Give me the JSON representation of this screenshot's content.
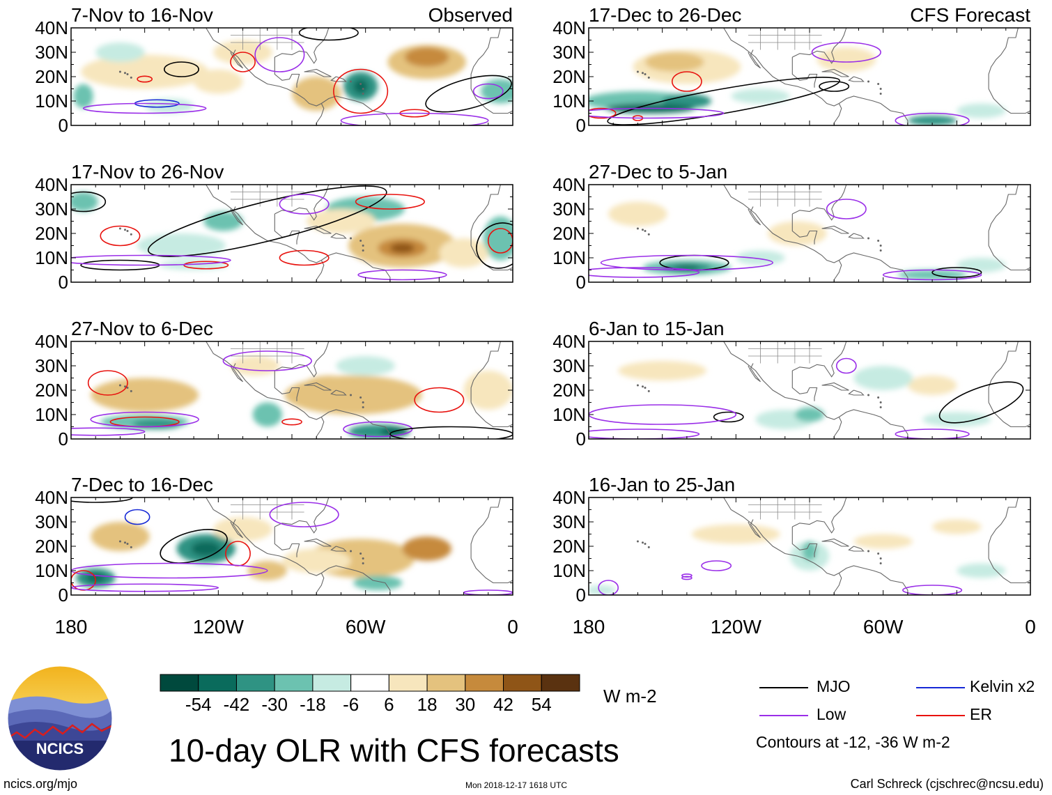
{
  "chart_data": {
    "type": "heatmap",
    "title": "10-day OLR with CFS forecasts",
    "units": "W m-2",
    "column_labels": {
      "left": "Observed",
      "right": "CFS Forecast"
    },
    "xticks": [
      "180",
      "120W",
      "60W",
      "0"
    ],
    "yticks": [
      "40N",
      "30N",
      "20N",
      "10N",
      "0"
    ],
    "xlim": [
      -180,
      0
    ],
    "ylim": [
      0,
      40
    ],
    "panels": [
      {
        "title": "7-Nov to 16-Nov",
        "kind": "Observed"
      },
      {
        "title": "17-Nov to 26-Nov",
        "kind": "Observed"
      },
      {
        "title": "27-Nov to 6-Dec",
        "kind": "Observed"
      },
      {
        "title": "7-Dec to 16-Dec",
        "kind": "Observed"
      },
      {
        "title": "17-Dec to 26-Dec",
        "kind": "CFS Forecast"
      },
      {
        "title": "27-Dec to 5-Jan",
        "kind": "CFS Forecast"
      },
      {
        "title": "6-Jan to 15-Jan",
        "kind": "CFS Forecast"
      },
      {
        "title": "16-Jan to 25-Jan",
        "kind": "CFS Forecast"
      }
    ],
    "colorbar": {
      "levels": [
        "-54",
        "-42",
        "-30",
        "-18",
        "-6",
        "6",
        "18",
        "30",
        "42",
        "54"
      ],
      "colors": [
        "#00493d",
        "#0a6b5c",
        "#2f9383",
        "#6cc2b0",
        "#c6ebe2",
        "#ffffff",
        "#f7e6bd",
        "#e4c27e",
        "#c68a3c",
        "#8f5517",
        "#5a3210"
      ]
    },
    "legend": [
      {
        "name": "MJO",
        "color": "#000000"
      },
      {
        "name": "Kelvin x2",
        "color": "#1528d6"
      },
      {
        "name": "Low",
        "color": "#9a2ee8"
      },
      {
        "name": "ER",
        "color": "#e8120e"
      }
    ],
    "contour_note": "Contours at -12, -36 W m-2"
  },
  "logo": {
    "text": "NCICS"
  },
  "footer": {
    "left": "ncics.org/mjo",
    "middle": "Mon 2018-12-17 1618 UTC",
    "right": "Carl Schreck (cjschrec@ncsu.edu)"
  },
  "colors": {
    "mjo": "#000000",
    "kelvin": "#1528d6",
    "low": "#9a2ee8",
    "er": "#e8120e"
  }
}
